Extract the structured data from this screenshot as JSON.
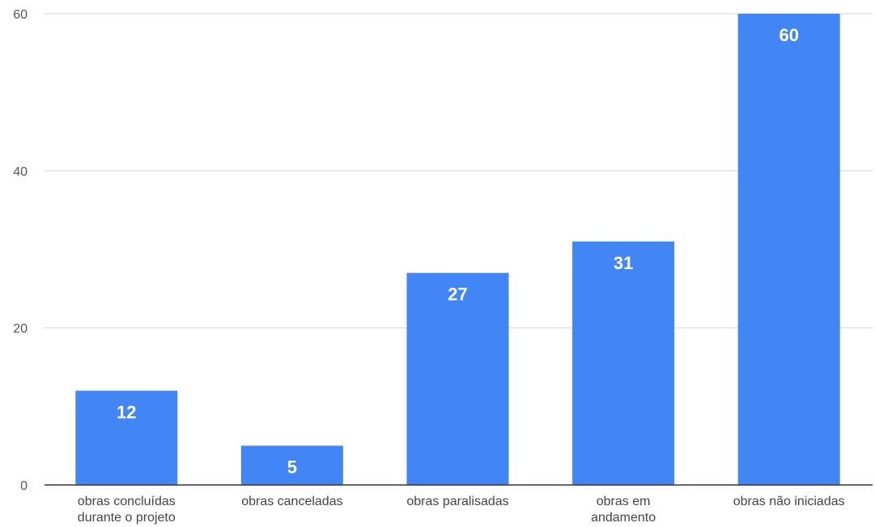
{
  "chart_data": {
    "type": "bar",
    "categories": [
      [
        "obras concluídas",
        "durante o projeto"
      ],
      [
        "obras canceladas"
      ],
      [
        "obras paralisadas"
      ],
      [
        "obras em",
        "andamento"
      ],
      [
        "obras não iniciadas"
      ]
    ],
    "values": [
      12,
      5,
      27,
      31,
      60
    ],
    "data_labels": [
      "12",
      "5",
      "27",
      "31",
      "60"
    ],
    "title": "",
    "xlabel": "",
    "ylabel": "",
    "ylim": [
      0,
      60
    ],
    "yticks": [
      0,
      20,
      40,
      60
    ],
    "ytick_labels": [
      "0",
      "20",
      "40",
      "60"
    ],
    "grid": true,
    "legend": "none",
    "colors": {
      "bar": "#4285f4",
      "grid": "#e0e0e0",
      "baseline": "#333333",
      "data_label": "#ffffff"
    }
  }
}
